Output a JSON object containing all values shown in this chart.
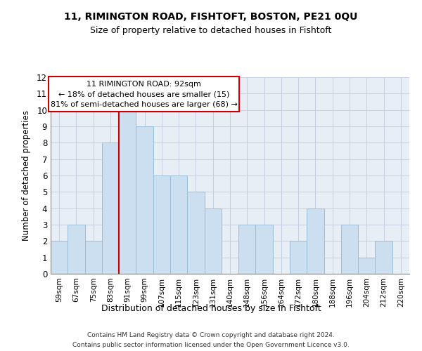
{
  "title1": "11, RIMINGTON ROAD, FISHTOFT, BOSTON, PE21 0QU",
  "title2": "Size of property relative to detached houses in Fishtoft",
  "xlabel": "Distribution of detached houses by size in Fishtoft",
  "ylabel": "Number of detached properties",
  "categories": [
    "59sqm",
    "67sqm",
    "75sqm",
    "83sqm",
    "91sqm",
    "99sqm",
    "107sqm",
    "115sqm",
    "123sqm",
    "131sqm",
    "140sqm",
    "148sqm",
    "156sqm",
    "164sqm",
    "172sqm",
    "180sqm",
    "188sqm",
    "196sqm",
    "204sqm",
    "212sqm",
    "220sqm"
  ],
  "values": [
    2,
    3,
    2,
    8,
    10,
    9,
    6,
    6,
    5,
    4,
    0,
    3,
    3,
    0,
    2,
    4,
    0,
    3,
    1,
    2,
    0
  ],
  "bar_color": "#ccdff0",
  "bar_edge_color": "#9bbdd4",
  "highlight_index": 4,
  "highlight_line_color": "#cc0000",
  "ylim": [
    0,
    12
  ],
  "yticks": [
    0,
    1,
    2,
    3,
    4,
    5,
    6,
    7,
    8,
    9,
    10,
    11,
    12
  ],
  "annotation_title": "11 RIMINGTON ROAD: 92sqm",
  "annotation_line1": "← 18% of detached houses are smaller (15)",
  "annotation_line2": "81% of semi-detached houses are larger (68) →",
  "annotation_box_color": "#ffffff",
  "annotation_box_edge": "#cc0000",
  "footer1": "Contains HM Land Registry data © Crown copyright and database right 2024.",
  "footer2": "Contains public sector information licensed under the Open Government Licence v3.0.",
  "bg_color": "#ffffff",
  "plot_bg_color": "#e8eef5",
  "grid_color": "#c5cfe0"
}
